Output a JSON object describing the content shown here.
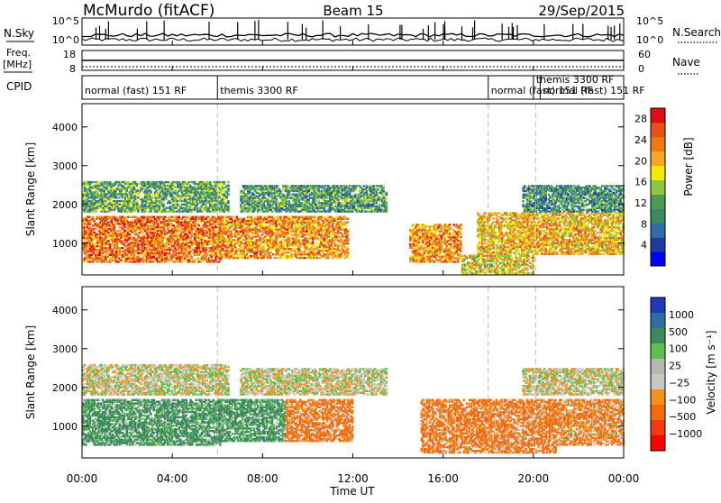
{
  "header": {
    "station": "McMurdo (fitACF)",
    "beam": "Beam 15",
    "date": "29/Sep/2015"
  },
  "status_panels": {
    "nsky_label": "N.Sky",
    "nsky_ticks": [
      "10^5",
      "10^0"
    ],
    "nsearch_label": "N.Search",
    "nsearch_ticks": [
      "10^5",
      "10^0"
    ],
    "freq_label_1": "Freq.",
    "freq_label_2": "[MHz]",
    "freq_ticks": [
      "18",
      "8"
    ],
    "nave_label": "Nave",
    "nave_ticks": [
      "60",
      "0"
    ],
    "cpid_label": "CPID",
    "cpid_segments": [
      {
        "label": "normal (fast) 151 RF",
        "start_h": 0,
        "end_h": 6
      },
      {
        "label": "themis 3300 RF",
        "start_h": 6,
        "end_h": 18
      },
      {
        "label": "normal (fast) 151 RF",
        "start_h": 18,
        "end_h": 20
      },
      {
        "label": "themis 3300 RF",
        "start_h": 20,
        "end_h": 20.3
      },
      {
        "label": "normal (fast) 151 RF",
        "start_h": 20.3,
        "end_h": 24
      }
    ]
  },
  "colors": {
    "power_scale": [
      "#0000ff",
      "#1c3c9c",
      "#2e6ea6",
      "#3a8a64",
      "#4a9a52",
      "#8ec63f",
      "#f5e90a",
      "#f5a623",
      "#ee7a13",
      "#e8501a",
      "#e01010"
    ],
    "velocity_scale": [
      "#ff0000",
      "#f23a10",
      "#f26b10",
      "#f5921e",
      "#c8c8c0",
      "#b8b8b0",
      "#5ec050",
      "#3e8a5e",
      "#2e6ea6",
      "#1e3ab8"
    ]
  },
  "chart_data": [
    {
      "type": "heatmap",
      "title": "Power",
      "xlabel": "Time UT",
      "ylabel": "Slant Range [km]",
      "xlim": [
        0,
        24
      ],
      "ylim": [
        180,
        4600
      ],
      "x_tick_labels": [
        "00:00",
        "04:00",
        "08:00",
        "12:00",
        "16:00",
        "20:00",
        "00:00"
      ],
      "y_tick_labels": [
        "1000",
        "2000",
        "3000",
        "4000"
      ],
      "colorbar_label": "Power [dB]",
      "colorbar_ticks": [
        "4",
        "8",
        "12",
        "16",
        "20",
        "24",
        "28"
      ],
      "colorbar_range": [
        0,
        30
      ],
      "scatter_regions": [
        {
          "t0": 0.0,
          "t1": 6.2,
          "r0": 500,
          "r1": 1700,
          "value": 24
        },
        {
          "t0": 0.0,
          "t1": 6.5,
          "r0": 1800,
          "r1": 2600,
          "value": 12
        },
        {
          "t0": 6.0,
          "t1": 11.8,
          "r0": 600,
          "r1": 1700,
          "value": 22
        },
        {
          "t0": 7.0,
          "t1": 13.5,
          "r0": 1800,
          "r1": 2500,
          "value": 11
        },
        {
          "t0": 14.5,
          "t1": 16.8,
          "r0": 500,
          "r1": 1500,
          "value": 22
        },
        {
          "t0": 16.8,
          "t1": 20.0,
          "r0": 200,
          "r1": 700,
          "value": 18
        },
        {
          "t0": 17.5,
          "t1": 24.0,
          "r0": 700,
          "r1": 1800,
          "value": 20
        },
        {
          "t0": 19.5,
          "t1": 24.0,
          "r0": 1800,
          "r1": 2500,
          "value": 10
        }
      ]
    },
    {
      "type": "heatmap",
      "title": "Velocity",
      "xlabel": "Time UT",
      "ylabel": "Slant Range [km]",
      "xlim": [
        0,
        24
      ],
      "ylim": [
        180,
        4600
      ],
      "x_tick_labels": [
        "00:00",
        "04:00",
        "08:00",
        "12:00",
        "16:00",
        "20:00",
        "00:00"
      ],
      "y_tick_labels": [
        "1000",
        "2000",
        "3000",
        "4000"
      ],
      "colorbar_label": "Velocity [m s⁻¹]",
      "colorbar_ticks": [
        "1000",
        "500",
        "100",
        "25",
        "−25",
        "−100",
        "−500",
        "−1000"
      ],
      "scatter_regions": [
        {
          "t0": 0.0,
          "t1": 6.2,
          "r0": 500,
          "r1": 1700,
          "value": 200
        },
        {
          "t0": 0.0,
          "t1": 6.5,
          "r0": 1800,
          "r1": 2600,
          "value": 0
        },
        {
          "t0": 6.0,
          "t1": 9.0,
          "r0": 600,
          "r1": 1700,
          "value": 200
        },
        {
          "t0": 9.0,
          "t1": 12.0,
          "r0": 600,
          "r1": 1700,
          "value": -150
        },
        {
          "t0": 7.0,
          "t1": 13.5,
          "r0": 1800,
          "r1": 2500,
          "value": 0
        },
        {
          "t0": 15.0,
          "t1": 21.0,
          "r0": 300,
          "r1": 1700,
          "value": -150
        },
        {
          "t0": 19.5,
          "t1": 24.0,
          "r0": 1800,
          "r1": 2500,
          "value": 0
        },
        {
          "t0": 21.0,
          "t1": 24.0,
          "r0": 500,
          "r1": 1700,
          "value": -100
        }
      ]
    }
  ]
}
